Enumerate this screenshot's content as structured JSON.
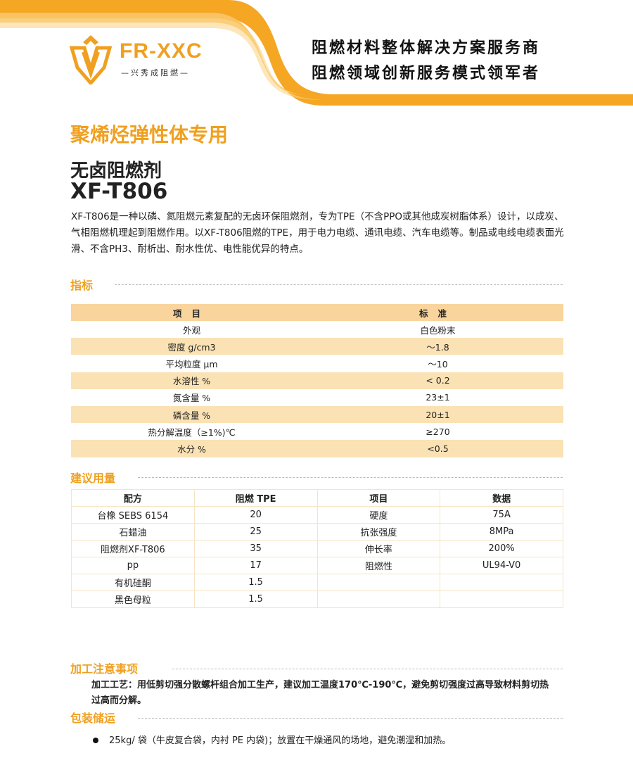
{
  "header": {
    "logo_text": "FR-XXC",
    "logo_subtitle": "—兴秀成阻燃—",
    "slogans": [
      "阻燃材料整体解决方案服务商",
      "阻燃领域创新服务模式领军者"
    ],
    "accent": "#f0a020"
  },
  "product": {
    "category": "聚烯烃弹性体专用",
    "type": "无卤阻燃剂",
    "model": "XF-T806",
    "description": "XF-T806是一种以磷、氮阻燃元素复配的无卤环保阻燃剂，专为TPE（不含PPO或其他成炭树脂体系）设计，以成炭、气相阻燃机理起到阻燃作用。以XF-T806阻燃的TPE，用于电力电缆、通讯电缆、汽车电缆等。制品或电线电缆表面光滑、不含PH3、耐析出、耐水性优、电性能优异的特点。"
  },
  "specs": {
    "title": "指标",
    "headers": [
      "项目",
      "标准"
    ],
    "rows": [
      [
        "外观",
        "白色粉末"
      ],
      [
        "密度 g/cm3",
        "～1.8"
      ],
      [
        "平均粒度 μm",
        "～10"
      ],
      [
        "水溶性 %",
        "< 0.2"
      ],
      [
        "氮含量 %",
        "23±1"
      ],
      [
        "磷含量 %",
        "20±1"
      ],
      [
        "热分解温度（≥1%)℃",
        "≥270"
      ],
      [
        "水分 %",
        "<0.5"
      ]
    ]
  },
  "dosage": {
    "title": "建议用量",
    "headers": [
      "配方",
      "阻燃 TPE",
      "项目",
      "数据"
    ],
    "rows": [
      [
        "台橡 SEBS 6154",
        "20",
        "硬度",
        "75A"
      ],
      [
        "石蜡油",
        "25",
        "抗张强度",
        "8MPa"
      ],
      [
        "阻燃剂XF-T806",
        "35",
        "伸长率",
        "200%"
      ],
      [
        "pp",
        "17",
        "阻燃性",
        "UL94-V0"
      ],
      [
        "有机硅酮",
        "1.5",
        "",
        ""
      ],
      [
        "黑色母粒",
        "1.5",
        "",
        ""
      ]
    ]
  },
  "processing": {
    "title": "加工注意事项",
    "text": "加工工艺：用低剪切强分散螺杆组合加工生产，建议加工温度170℃-190℃，避免剪切强度过高导致材料剪切热过高而分解。"
  },
  "packaging": {
    "title": "包装储运",
    "items": [
      "25kg/ 袋（牛皮复合袋，内衬 PE 内袋)；放置在干燥通风的场地，避免潮湿和加热。"
    ]
  }
}
